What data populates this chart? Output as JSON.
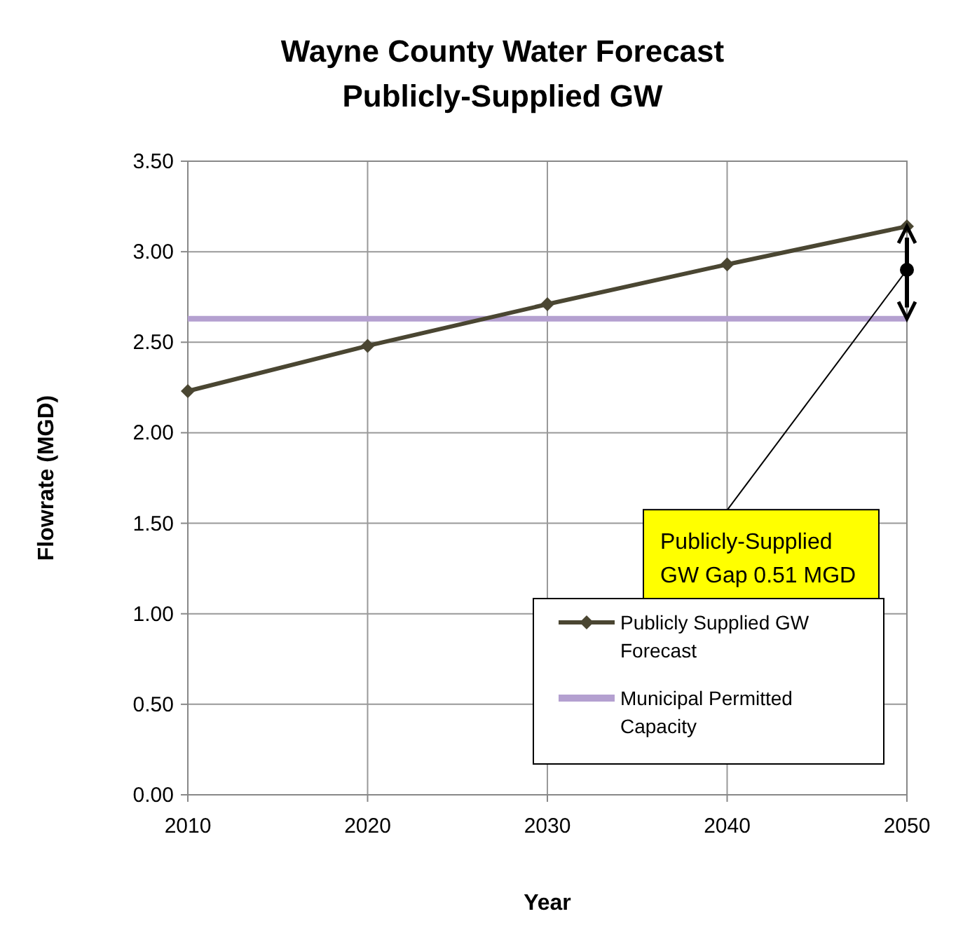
{
  "chart_data": {
    "type": "line",
    "title": "Wayne County Water Forecast",
    "subtitle": "Publicly-Supplied GW",
    "xlabel": "Year",
    "ylabel": "Flowrate (MGD)",
    "x": [
      2010,
      2020,
      2030,
      2040,
      2050
    ],
    "series": [
      {
        "name": "Publicly Supplied GW Forecast",
        "color": "#4a4632",
        "values": [
          2.23,
          2.48,
          2.71,
          2.93,
          3.14
        ],
        "marker": "diamond"
      },
      {
        "name": "Municipal Permitted Capacity",
        "color": "#b4a0d0",
        "values": [
          2.63,
          2.63,
          2.63,
          2.63,
          2.63
        ],
        "marker": "none"
      }
    ],
    "xlim": [
      2010,
      2050
    ],
    "xticks": [
      2010,
      2020,
      2030,
      2040,
      2050
    ],
    "ylim": [
      0,
      3.5
    ],
    "yticks": [
      {
        "value": 0,
        "label": "0.00"
      },
      {
        "value": 0.5,
        "label": "0.50"
      },
      {
        "value": 1,
        "label": "1.00"
      },
      {
        "value": 1.5,
        "label": "1.50"
      },
      {
        "value": 2,
        "label": "2.00"
      },
      {
        "value": 2.5,
        "label": "2.50"
      },
      {
        "value": 3,
        "label": "3.00"
      },
      {
        "value": 3.5,
        "label": "3.50"
      }
    ],
    "grid": true,
    "legend": "bottom right",
    "annotations": [
      {
        "text": "Publicly-Supplied GW Gap 0.51 MGD",
        "x": 2050,
        "y": 2.9
      }
    ]
  }
}
